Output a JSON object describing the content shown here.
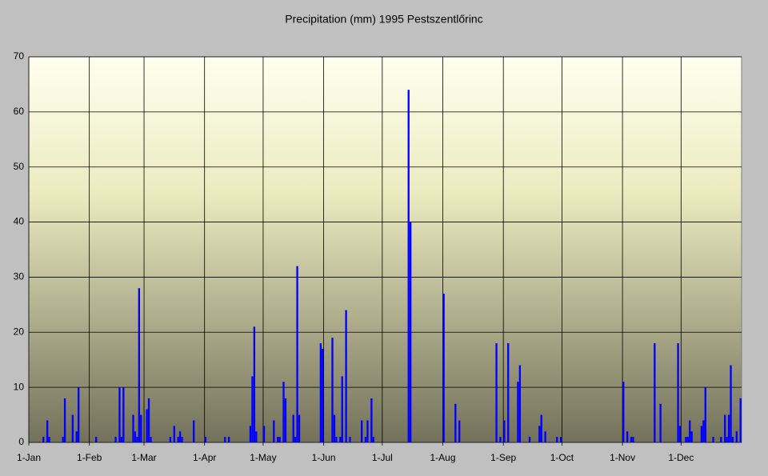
{
  "chart_data": {
    "type": "bar",
    "title": "Precipitation (mm) 1995 Pestszentlőrinc",
    "color": "#0000ff",
    "grid": true,
    "x": [
      7,
      9,
      10,
      17,
      18,
      22,
      24,
      25,
      34,
      44,
      46,
      47,
      48,
      53,
      54,
      55,
      56,
      57,
      60,
      61,
      62,
      72,
      74,
      76,
      77,
      78,
      84,
      90,
      100,
      102,
      113,
      114,
      115,
      116,
      120,
      125,
      127,
      128,
      130,
      131,
      135,
      136,
      137,
      138,
      149,
      150,
      155,
      156,
      157,
      159,
      160,
      162,
      164,
      170,
      172,
      173,
      175,
      176,
      194,
      195,
      212,
      218,
      220,
      239,
      241,
      243,
      245,
      250,
      251,
      256,
      261,
      262,
      264,
      270,
      272,
      304,
      306,
      308,
      309,
      320,
      323,
      332,
      333,
      336,
      337,
      338,
      339,
      344,
      345,
      346,
      350,
      354,
      356,
      357,
      358,
      359,
      360,
      362,
      364
    ],
    "values": [
      1,
      4,
      1,
      1,
      8,
      5,
      2,
      10,
      1,
      1,
      10,
      1,
      10,
      5,
      2,
      1,
      28,
      5,
      6,
      8,
      1,
      1,
      3,
      1,
      2,
      1,
      4,
      1,
      1,
      1,
      3,
      12,
      21,
      2,
      3,
      4,
      1,
      1,
      11,
      8,
      5,
      1,
      32,
      5,
      18,
      17,
      19,
      5,
      1,
      1,
      12,
      24,
      1,
      4,
      1,
      4,
      8,
      1,
      64,
      40,
      27,
      7,
      4,
      18,
      1,
      4,
      18,
      11,
      14,
      1,
      3,
      5,
      2,
      1,
      1,
      11,
      2,
      1,
      1,
      18,
      7,
      18,
      3,
      1,
      1,
      4,
      2,
      3,
      4,
      10,
      1,
      1,
      5,
      1,
      5,
      14,
      1,
      2,
      8
    ],
    "xlim": [
      0,
      365
    ],
    "xticks": [
      {
        "value": 0,
        "label": "1-Jan"
      },
      {
        "value": 31,
        "label": "1-Feb"
      },
      {
        "value": 59,
        "label": "1-Mar"
      },
      {
        "value": 90,
        "label": "1-Apr"
      },
      {
        "value": 120,
        "label": "1-May"
      },
      {
        "value": 151,
        "label": "1-Jun"
      },
      {
        "value": 181,
        "label": "1-Jul"
      },
      {
        "value": 212,
        "label": "1-Aug"
      },
      {
        "value": 243,
        "label": "1-Sep"
      },
      {
        "value": 273,
        "label": "1-Oct"
      },
      {
        "value": 304,
        "label": "1-Nov"
      },
      {
        "value": 334,
        "label": "1-Dec"
      }
    ],
    "ylim": [
      0,
      70
    ],
    "yticks": [
      0,
      10,
      20,
      30,
      40,
      50,
      60,
      70
    ]
  }
}
